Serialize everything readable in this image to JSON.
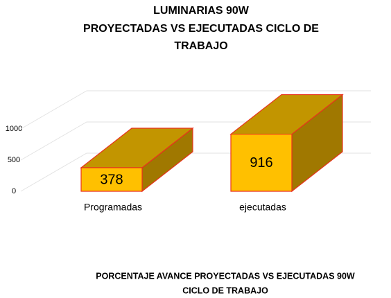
{
  "chart_data": {
    "type": "bar3d",
    "title": [
      "LUMINARIAS  90W",
      "PROYECTADAS VS EJECUTADAS CICLO DE",
      "TRABAJO"
    ],
    "categories": [
      "Programadas",
      "ejecutadas"
    ],
    "values": [
      378,
      916
    ],
    "color": "#ffc000",
    "ylim": [
      0,
      1000
    ],
    "yticks": [
      0,
      500,
      1000
    ],
    "grid": true,
    "annotation": [
      "PORCENTAJE AVANCE PROYECTADAS VS EJECUTADAS 90W",
      "CICLO DE TRABAJO"
    ]
  }
}
